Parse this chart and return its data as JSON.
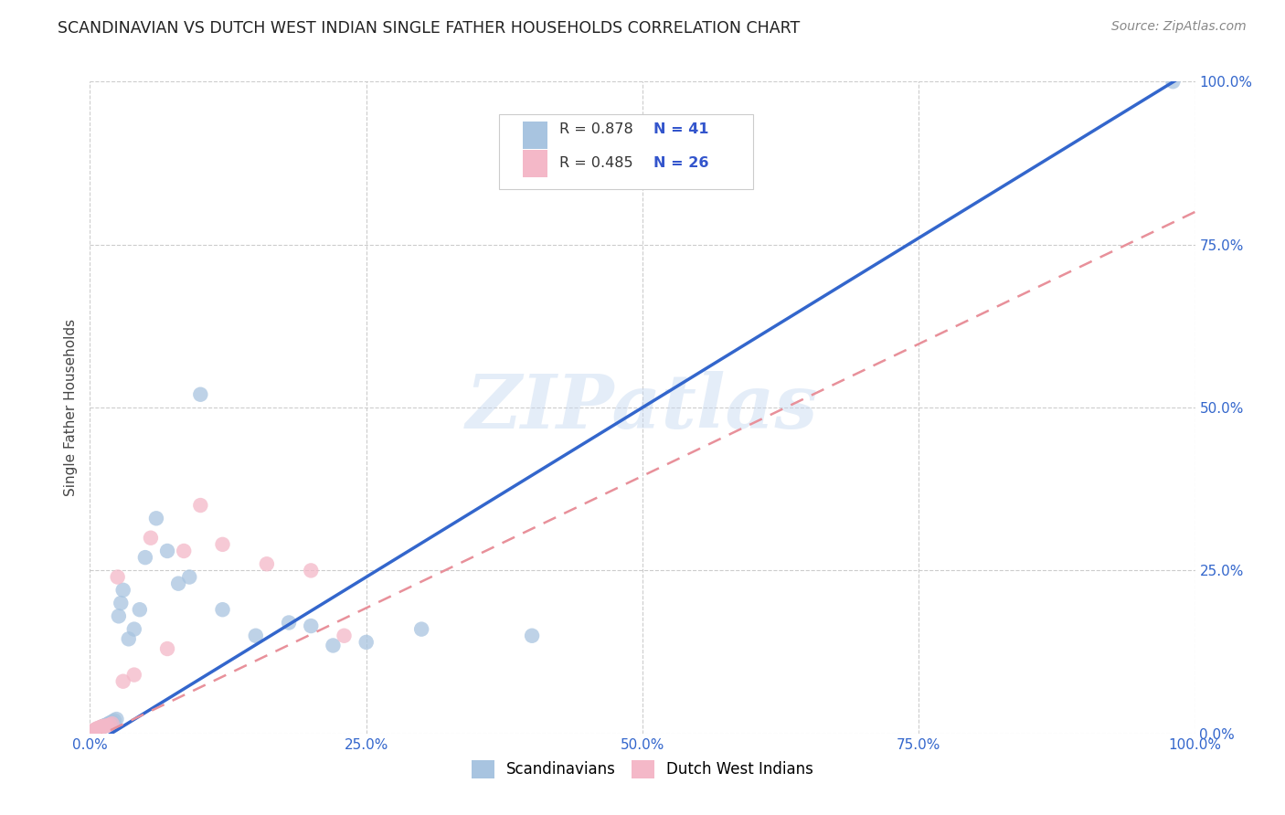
{
  "title": "SCANDINAVIAN VS DUTCH WEST INDIAN SINGLE FATHER HOUSEHOLDS CORRELATION CHART",
  "source": "Source: ZipAtlas.com",
  "ylabel": "Single Father Households",
  "watermark": "ZIPatlas",
  "xlim": [
    0,
    1
  ],
  "ylim": [
    0,
    1
  ],
  "xticks": [
    0.0,
    0.25,
    0.5,
    0.75,
    1.0
  ],
  "yticks": [
    0.0,
    0.25,
    0.5,
    0.75,
    1.0
  ],
  "xtick_labels": [
    "0.0%",
    "25.0%",
    "50.0%",
    "75.0%",
    "100.0%"
  ],
  "ytick_labels": [
    "0.0%",
    "25.0%",
    "50.0%",
    "75.0%",
    "100.0%"
  ],
  "scandinavian_color": "#a8c4e0",
  "dutch_color": "#f4b8c8",
  "blue_line_color": "#3366cc",
  "pink_line_color": "#e8909a",
  "R1": 0.878,
  "N1": 41,
  "R2": 0.485,
  "N2": 26,
  "background_color": "#ffffff",
  "grid_color": "#cccccc",
  "scandinavian_x": [
    0.001,
    0.002,
    0.003,
    0.004,
    0.005,
    0.006,
    0.007,
    0.008,
    0.009,
    0.01,
    0.011,
    0.012,
    0.013,
    0.015,
    0.016,
    0.017,
    0.018,
    0.02,
    0.022,
    0.024,
    0.026,
    0.028,
    0.03,
    0.035,
    0.04,
    0.045,
    0.05,
    0.06,
    0.07,
    0.08,
    0.09,
    0.1,
    0.12,
    0.15,
    0.18,
    0.2,
    0.22,
    0.25,
    0.3,
    0.4,
    0.98
  ],
  "scandinavian_y": [
    0.001,
    0.002,
    0.003,
    0.004,
    0.005,
    0.006,
    0.006,
    0.007,
    0.008,
    0.009,
    0.01,
    0.011,
    0.012,
    0.013,
    0.014,
    0.015,
    0.016,
    0.018,
    0.02,
    0.022,
    0.18,
    0.2,
    0.22,
    0.145,
    0.16,
    0.19,
    0.27,
    0.33,
    0.28,
    0.23,
    0.24,
    0.52,
    0.19,
    0.15,
    0.17,
    0.165,
    0.135,
    0.14,
    0.16,
    0.15,
    1.0
  ],
  "dutch_x": [
    0.001,
    0.002,
    0.003,
    0.004,
    0.005,
    0.006,
    0.007,
    0.008,
    0.009,
    0.01,
    0.011,
    0.012,
    0.015,
    0.018,
    0.02,
    0.025,
    0.03,
    0.04,
    0.055,
    0.07,
    0.085,
    0.1,
    0.12,
    0.16,
    0.2,
    0.23
  ],
  "dutch_y": [
    0.002,
    0.003,
    0.004,
    0.005,
    0.006,
    0.007,
    0.008,
    0.008,
    0.009,
    0.01,
    0.01,
    0.011,
    0.012,
    0.013,
    0.015,
    0.24,
    0.08,
    0.09,
    0.3,
    0.13,
    0.28,
    0.35,
    0.29,
    0.26,
    0.25,
    0.15
  ],
  "blue_line_x0": 0.0,
  "blue_line_y0": -0.02,
  "blue_line_x1": 1.0,
  "blue_line_y1": 1.02,
  "pink_line_x0": 0.0,
  "pink_line_y0": -0.01,
  "pink_line_x1": 1.0,
  "pink_line_y1": 0.8
}
